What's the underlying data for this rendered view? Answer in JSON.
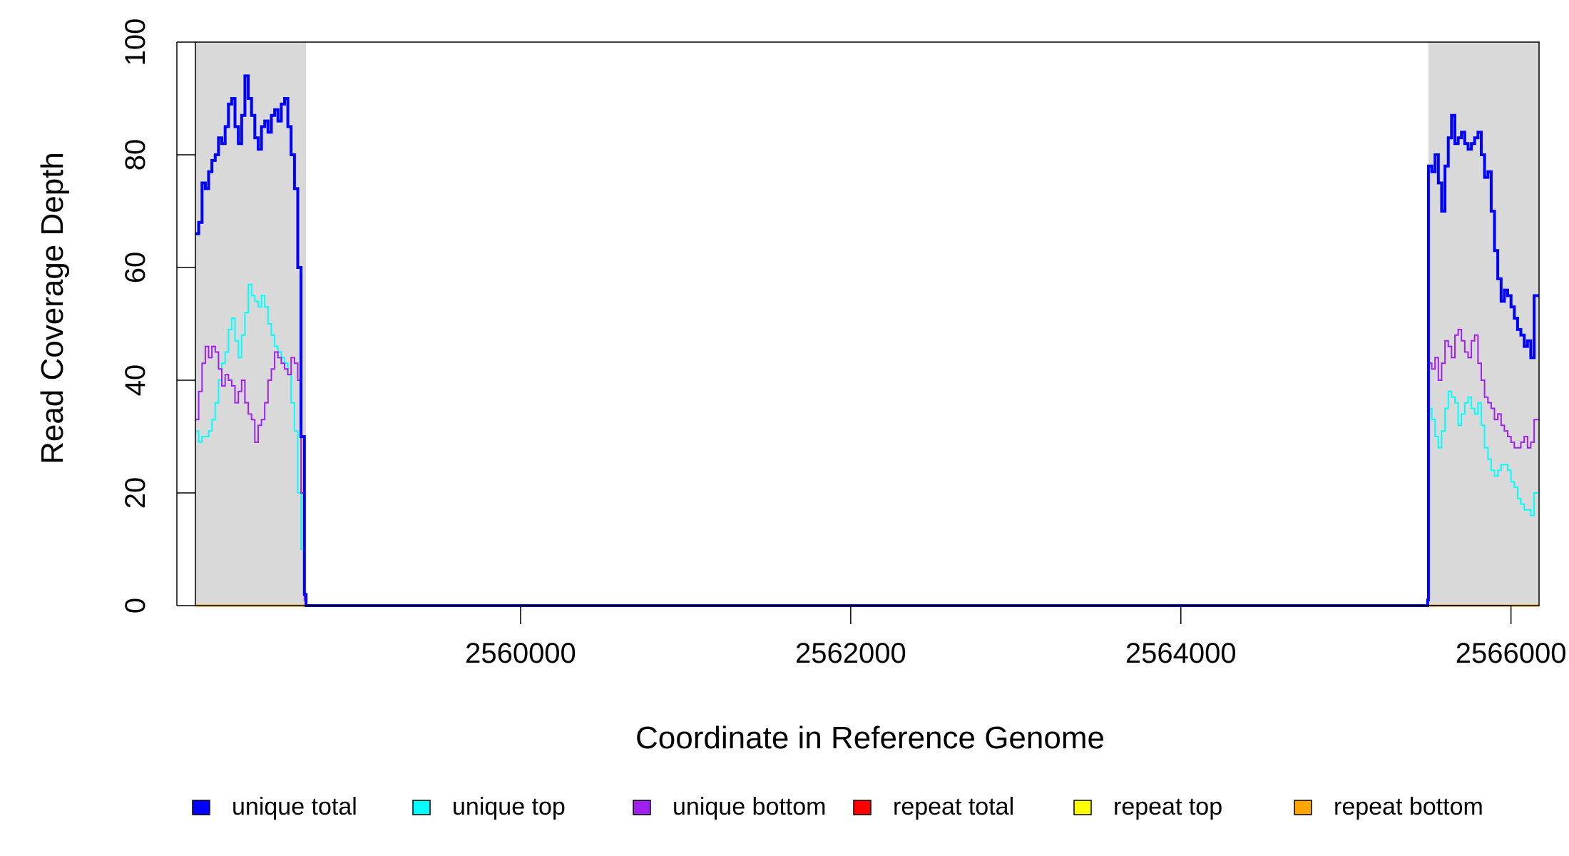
{
  "chart_data": {
    "type": "line",
    "title": "",
    "xlabel": "Coordinate in Reference Genome",
    "ylabel": "Read Coverage Depth",
    "xlim": [
      2558030,
      2566170
    ],
    "ylim": [
      0,
      100
    ],
    "x_ticks": [
      2560000,
      2562000,
      2564000,
      2566000
    ],
    "x_tick_labels": [
      "2560000",
      "2562000",
      "2564000",
      "2566000"
    ],
    "y_ticks": [
      0,
      20,
      40,
      60,
      80,
      100
    ],
    "y_tick_labels": [
      "0",
      "20",
      "40",
      "60",
      "80",
      "100"
    ],
    "shaded_regions": [
      {
        "x0": 2558030,
        "x1": 2558700,
        "color": "#d9d9d9"
      },
      {
        "x0": 2565500,
        "x1": 2566170,
        "color": "#d9d9d9"
      }
    ],
    "grid": false,
    "legend_position": "bottom",
    "series": [
      {
        "name": "unique total",
        "color": "#0000ff",
        "width": 4,
        "x": [
          2558030,
          2558050,
          2558070,
          2558090,
          2558110,
          2558130,
          2558150,
          2558170,
          2558190,
          2558210,
          2558230,
          2558250,
          2558270,
          2558290,
          2558310,
          2558330,
          2558350,
          2558370,
          2558390,
          2558410,
          2558430,
          2558450,
          2558470,
          2558490,
          2558510,
          2558530,
          2558550,
          2558570,
          2558590,
          2558610,
          2558630,
          2558650,
          2558670,
          2558690,
          2558700,
          2558705,
          2558710,
          2565480,
          2565490,
          2565495,
          2565500,
          2565520,
          2565540,
          2565560,
          2565580,
          2565600,
          2565620,
          2565640,
          2565660,
          2565680,
          2565700,
          2565720,
          2565740,
          2565760,
          2565780,
          2565800,
          2565820,
          2565840,
          2565860,
          2565880,
          2565900,
          2565920,
          2565940,
          2565960,
          2565980,
          2566000,
          2566020,
          2566040,
          2566060,
          2566080,
          2566100,
          2566120,
          2566140,
          2566160,
          2566170
        ],
        "y": [
          66,
          68,
          75,
          74,
          77,
          79,
          80,
          83,
          82,
          85,
          89,
          90,
          85,
          82,
          87,
          94,
          90,
          87,
          83,
          81,
          85,
          86,
          84,
          87,
          88,
          86,
          89,
          90,
          85,
          80,
          74,
          60,
          30,
          2,
          0,
          0,
          0,
          0,
          0,
          1,
          78,
          77,
          80,
          75,
          70,
          78,
          83,
          87,
          82,
          83,
          84,
          82,
          81,
          82,
          83,
          84,
          80,
          76,
          77,
          70,
          63,
          58,
          54,
          56,
          55,
          53,
          51,
          49,
          48,
          46,
          47,
          44,
          55,
          55,
          55
        ]
      },
      {
        "name": "unique top",
        "color": "#00ffff",
        "width": 2,
        "x": [
          2558030,
          2558050,
          2558070,
          2558090,
          2558110,
          2558130,
          2558150,
          2558170,
          2558190,
          2558210,
          2558230,
          2558250,
          2558270,
          2558290,
          2558310,
          2558330,
          2558350,
          2558370,
          2558390,
          2558410,
          2558430,
          2558450,
          2558470,
          2558490,
          2558510,
          2558530,
          2558550,
          2558570,
          2558590,
          2558610,
          2558630,
          2558650,
          2558670,
          2558690,
          2558700,
          2558705,
          2558710,
          2565480,
          2565490,
          2565495,
          2565500,
          2565520,
          2565540,
          2565560,
          2565580,
          2565600,
          2565620,
          2565640,
          2565660,
          2565680,
          2565700,
          2565720,
          2565740,
          2565760,
          2565780,
          2565800,
          2565820,
          2565840,
          2565860,
          2565880,
          2565900,
          2565920,
          2565940,
          2565960,
          2565980,
          2566000,
          2566020,
          2566040,
          2566060,
          2566080,
          2566100,
          2566120,
          2566140,
          2566160,
          2566170
        ],
        "y": [
          31,
          29,
          30,
          30,
          31,
          33,
          36,
          40,
          43,
          45,
          49,
          51,
          47,
          44,
          48,
          52,
          57,
          55,
          54,
          53,
          55,
          53,
          50,
          48,
          46,
          45,
          44,
          43,
          41,
          36,
          31,
          20,
          10,
          1,
          0,
          0,
          0,
          0,
          0,
          1,
          35,
          33,
          30,
          28,
          31,
          35,
          38,
          37,
          36,
          32,
          34,
          36,
          37,
          35,
          34,
          36,
          32,
          28,
          26,
          24,
          23,
          24,
          25,
          25,
          24,
          22,
          21,
          19,
          18,
          17,
          17,
          16,
          20,
          20,
          20
        ]
      },
      {
        "name": "unique bottom",
        "color": "#a020f0",
        "width": 2,
        "x": [
          2558030,
          2558050,
          2558070,
          2558090,
          2558110,
          2558130,
          2558150,
          2558170,
          2558190,
          2558210,
          2558230,
          2558250,
          2558270,
          2558290,
          2558310,
          2558330,
          2558350,
          2558370,
          2558390,
          2558410,
          2558430,
          2558450,
          2558470,
          2558490,
          2558510,
          2558530,
          2558550,
          2558570,
          2558590,
          2558610,
          2558630,
          2558650,
          2558670,
          2558690,
          2558700,
          2558705,
          2558710,
          2565480,
          2565490,
          2565495,
          2565500,
          2565520,
          2565540,
          2565560,
          2565580,
          2565600,
          2565620,
          2565640,
          2565660,
          2565680,
          2565700,
          2565720,
          2565740,
          2565760,
          2565780,
          2565800,
          2565820,
          2565840,
          2565860,
          2565880,
          2565900,
          2565920,
          2565940,
          2565960,
          2565980,
          2566000,
          2566020,
          2566040,
          2566060,
          2566080,
          2566100,
          2566120,
          2566140,
          2566160,
          2566170
        ],
        "y": [
          33,
          38,
          43,
          46,
          44,
          46,
          45,
          42,
          39,
          41,
          40,
          39,
          36,
          38,
          40,
          36,
          34,
          33,
          29,
          32,
          33,
          36,
          40,
          42,
          45,
          44,
          43,
          42,
          41,
          44,
          43,
          40,
          20,
          1,
          0,
          0,
          0,
          0,
          0,
          1,
          43,
          42,
          44,
          40,
          43,
          47,
          46,
          44,
          48,
          49,
          47,
          45,
          44,
          47,
          48,
          43,
          40,
          37,
          36,
          35,
          33,
          34,
          32,
          31,
          30,
          29,
          28,
          28,
          29,
          30,
          28,
          29,
          33,
          33,
          33
        ]
      },
      {
        "name": "repeat total",
        "color": "#ff0000",
        "width": 2,
        "x": [
          2558030,
          2566170
        ],
        "y": [
          0,
          0
        ]
      },
      {
        "name": "repeat top",
        "color": "#ffff00",
        "width": 2,
        "x": [
          2558030,
          2566170
        ],
        "y": [
          0,
          0
        ]
      },
      {
        "name": "repeat bottom",
        "color": "#ffa500",
        "width": 3,
        "x": [
          2558030,
          2566170
        ],
        "y": [
          0,
          0
        ]
      }
    ]
  }
}
